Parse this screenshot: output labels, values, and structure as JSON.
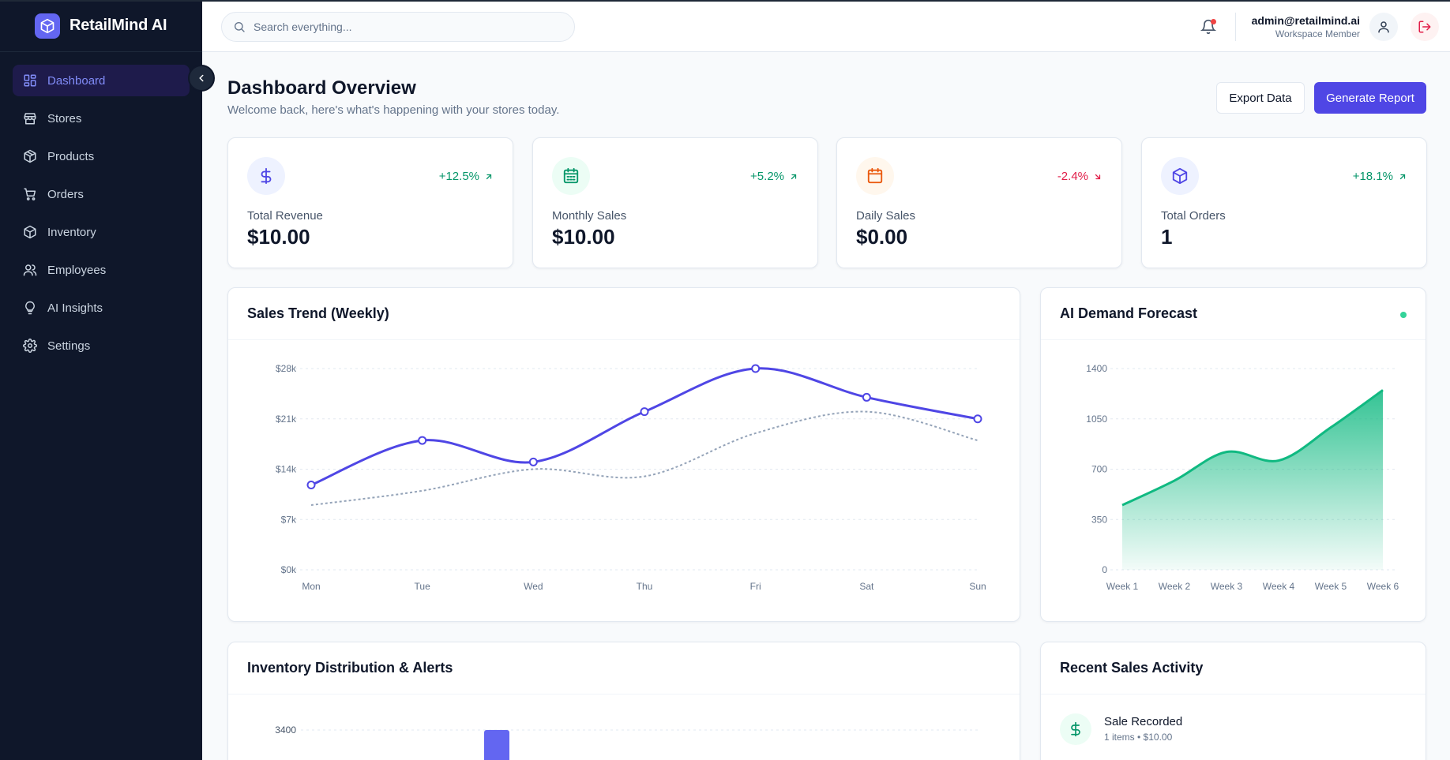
{
  "app": {
    "name": "RetailMind AI"
  },
  "sidebar": {
    "items": [
      {
        "label": "Dashboard",
        "icon": "dashboard-icon",
        "active": true
      },
      {
        "label": "Stores",
        "icon": "store-icon"
      },
      {
        "label": "Products",
        "icon": "package-icon"
      },
      {
        "label": "Orders",
        "icon": "cart-icon"
      },
      {
        "label": "Inventory",
        "icon": "box-icon"
      },
      {
        "label": "Employees",
        "icon": "users-icon"
      },
      {
        "label": "AI Insights",
        "icon": "lightbulb-icon"
      },
      {
        "label": "Settings",
        "icon": "gear-icon"
      }
    ]
  },
  "topbar": {
    "search_placeholder": "Search everything...",
    "user_email": "admin@retailmind.ai",
    "user_role": "Workspace Member"
  },
  "header": {
    "title": "Dashboard Overview",
    "subtitle": "Welcome back, here's what's happening with your stores today.",
    "export_label": "Export Data",
    "report_label": "Generate Report"
  },
  "stats": [
    {
      "label": "Total Revenue",
      "value": "$10.00",
      "delta": "+12.5%",
      "trend": "up",
      "icon": "dollar-icon",
      "color": "#4f46e5",
      "bg": "#eef2ff"
    },
    {
      "label": "Monthly Sales",
      "value": "$10.00",
      "delta": "+5.2%",
      "trend": "up",
      "icon": "calendar-icon",
      "color": "#059669",
      "bg": "#ecfdf5"
    },
    {
      "label": "Daily Sales",
      "value": "$0.00",
      "delta": "-2.4%",
      "trend": "down",
      "icon": "calendar-icon",
      "color": "#ea580c",
      "bg": "#fff7ed"
    },
    {
      "label": "Total Orders",
      "value": "1",
      "delta": "+18.1%",
      "trend": "up",
      "icon": "package-icon",
      "color": "#4f46e5",
      "bg": "#eef2ff"
    }
  ],
  "panels": {
    "sales_title": "Sales Trend (Weekly)",
    "forecast_title": "AI Demand Forecast",
    "inventory_title": "Inventory Distribution & Alerts",
    "activity_title": "Recent Sales Activity"
  },
  "activity": {
    "items": [
      {
        "title": "Sale Recorded",
        "subtitle": "1 items • $10.00",
        "icon": "dollar-icon"
      }
    ]
  },
  "chart_data": [
    {
      "type": "line",
      "title": "Sales Trend (Weekly)",
      "categories": [
        "Mon",
        "Tue",
        "Wed",
        "Thu",
        "Fri",
        "Sat",
        "Sun"
      ],
      "series": [
        {
          "values": [
            11800,
            18000,
            15000,
            22000,
            28000,
            24000,
            21000
          ],
          "color": "#4f46e5",
          "style": "solid",
          "markers": true
        },
        {
          "values": [
            9000,
            11000,
            14000,
            13000,
            19000,
            22000,
            18000
          ],
          "color": "#94a3b8",
          "style": "dashed",
          "markers": false
        }
      ],
      "y_ticks": [
        "$0k",
        "$7k",
        "$14k",
        "$21k",
        "$28k"
      ],
      "ylim": [
        0,
        28000
      ],
      "grid": true
    },
    {
      "type": "area",
      "title": "AI Demand Forecast",
      "categories": [
        "Week 1",
        "Week 2",
        "Week 3",
        "Week 4",
        "Week 5",
        "Week 6"
      ],
      "series": [
        {
          "values": [
            450,
            620,
            820,
            760,
            990,
            1250
          ],
          "color": "#10b981"
        }
      ],
      "y_ticks": [
        "0",
        "350",
        "700",
        "1050",
        "1400"
      ],
      "ylim": [
        0,
        1400
      ],
      "grid": true
    },
    {
      "type": "bar",
      "title": "Inventory Distribution & Alerts",
      "y_ticks": [
        "3400"
      ],
      "series": [
        {
          "values": [
            3400
          ],
          "color": "#6366f1"
        }
      ],
      "grid": true
    }
  ]
}
